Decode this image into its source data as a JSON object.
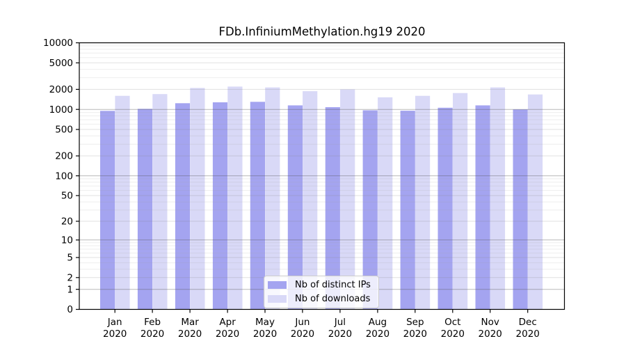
{
  "chart_data": {
    "type": "bar",
    "title": "FDb.InfiniumMethylation.hg19 2020",
    "categories": [
      "Jan",
      "Feb",
      "Mar",
      "Apr",
      "May",
      "Jun",
      "Jul",
      "Aug",
      "Sep",
      "Oct",
      "Nov",
      "Dec"
    ],
    "x_tick_second_line": "2020",
    "series": [
      {
        "name": "Nb of distinct IPs",
        "color": "#a4a4f0",
        "values": [
          950,
          1020,
          1240,
          1280,
          1300,
          1150,
          1080,
          970,
          955,
          1060,
          1150,
          1000
        ]
      },
      {
        "name": "Nb of downloads",
        "color": "#d9d9f7",
        "values": [
          1600,
          1700,
          2100,
          2200,
          2140,
          1880,
          2000,
          1520,
          1600,
          1760,
          2140,
          1680
        ]
      }
    ],
    "ylabel": "",
    "xlabel": "",
    "y_axis": {
      "scale": "log1p",
      "ticks": [
        0,
        1,
        2,
        5,
        10,
        20,
        50,
        100,
        200,
        500,
        1000,
        2000,
        5000,
        10000
      ],
      "range": [
        0,
        10000
      ]
    },
    "grid": true,
    "legend_position": "bottom-center",
    "background_color": "#ffffff",
    "axis_color": "#000000"
  }
}
